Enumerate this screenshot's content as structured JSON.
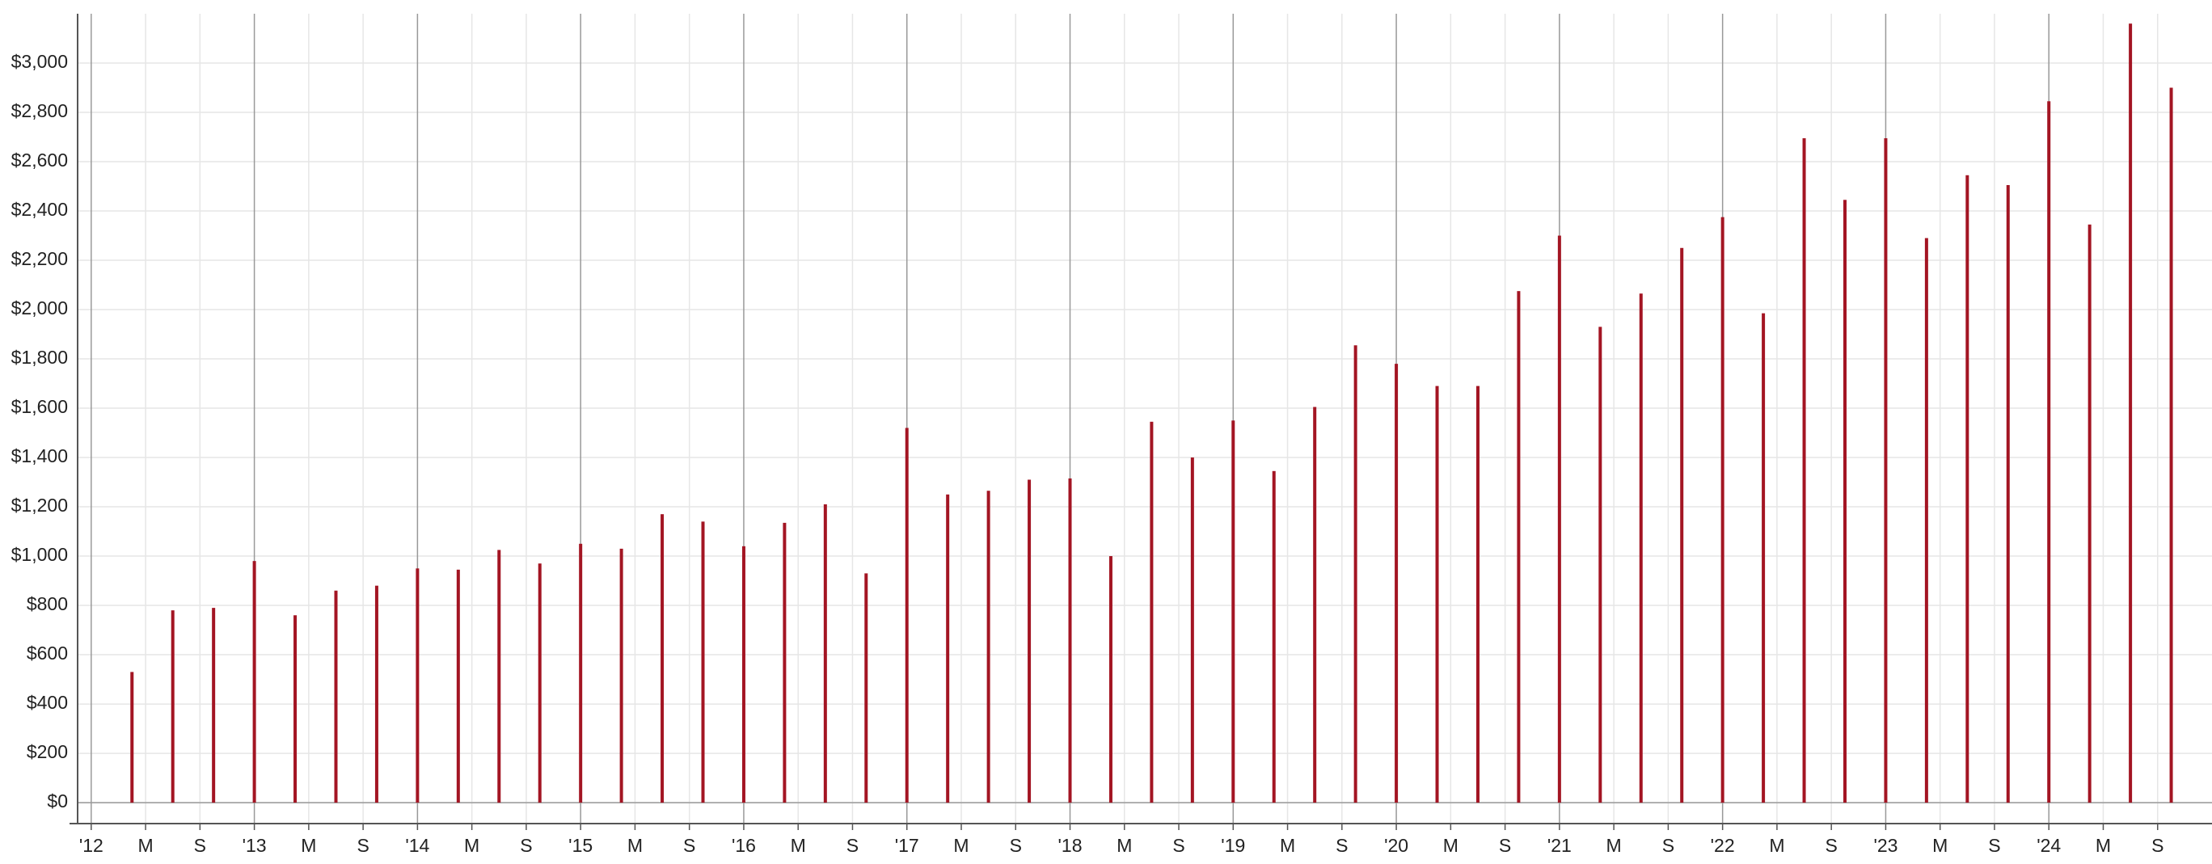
{
  "chart_data": {
    "type": "bar",
    "color": "#a31523",
    "grid": true,
    "x": [
      "2012-04",
      "2012-07",
      "2012-10",
      "2013-01",
      "2013-04",
      "2013-07",
      "2013-10",
      "2014-01",
      "2014-04",
      "2014-07",
      "2014-10",
      "2015-01",
      "2015-04",
      "2015-07",
      "2015-10",
      "2016-01",
      "2016-04",
      "2016-07",
      "2016-10",
      "2017-01",
      "2017-04",
      "2017-07",
      "2017-10",
      "2018-01",
      "2018-04",
      "2018-07",
      "2018-10",
      "2019-01",
      "2019-04",
      "2019-07",
      "2019-10",
      "2020-01",
      "2020-04",
      "2020-07",
      "2020-10",
      "2021-01",
      "2021-04",
      "2021-07",
      "2021-10",
      "2022-01",
      "2022-04",
      "2022-07",
      "2022-10",
      "2023-01",
      "2023-04",
      "2023-07",
      "2023-10",
      "2024-01",
      "2024-04",
      "2024-07",
      "2024-10"
    ],
    "values": [
      530,
      780,
      790,
      980,
      760,
      860,
      880,
      950,
      945,
      1025,
      970,
      1050,
      1030,
      1170,
      1140,
      1040,
      1135,
      1210,
      930,
      1520,
      1250,
      1265,
      1310,
      1315,
      1000,
      1545,
      1400,
      1550,
      1345,
      1605,
      1855,
      1780,
      1690,
      1690,
      2075,
      2300,
      1930,
      2065,
      2250,
      2375,
      1985,
      2695,
      2445,
      2695,
      2290,
      2545,
      2505,
      2845,
      2345,
      3160,
      2900
    ],
    "xlim": [
      "2011-12",
      "2025-01"
    ],
    "xticks": [
      {
        "value": "2012-01",
        "label": "'12"
      },
      {
        "value": "2012-05",
        "label": "M"
      },
      {
        "value": "2012-09",
        "label": "S"
      },
      {
        "value": "2013-01",
        "label": "'13"
      },
      {
        "value": "2013-05",
        "label": "M"
      },
      {
        "value": "2013-09",
        "label": "S"
      },
      {
        "value": "2014-01",
        "label": "'14"
      },
      {
        "value": "2014-05",
        "label": "M"
      },
      {
        "value": "2014-09",
        "label": "S"
      },
      {
        "value": "2015-01",
        "label": "'15"
      },
      {
        "value": "2015-05",
        "label": "M"
      },
      {
        "value": "2015-09",
        "label": "S"
      },
      {
        "value": "2016-01",
        "label": "'16"
      },
      {
        "value": "2016-05",
        "label": "M"
      },
      {
        "value": "2016-09",
        "label": "S"
      },
      {
        "value": "2017-01",
        "label": "'17"
      },
      {
        "value": "2017-05",
        "label": "M"
      },
      {
        "value": "2017-09",
        "label": "S"
      },
      {
        "value": "2018-01",
        "label": "'18"
      },
      {
        "value": "2018-05",
        "label": "M"
      },
      {
        "value": "2018-09",
        "label": "S"
      },
      {
        "value": "2019-01",
        "label": "'19"
      },
      {
        "value": "2019-05",
        "label": "M"
      },
      {
        "value": "2019-09",
        "label": "S"
      },
      {
        "value": "2020-01",
        "label": "'20"
      },
      {
        "value": "2020-05",
        "label": "M"
      },
      {
        "value": "2020-09",
        "label": "S"
      },
      {
        "value": "2021-01",
        "label": "'21"
      },
      {
        "value": "2021-05",
        "label": "M"
      },
      {
        "value": "2021-09",
        "label": "S"
      },
      {
        "value": "2022-01",
        "label": "'22"
      },
      {
        "value": "2022-05",
        "label": "M"
      },
      {
        "value": "2022-09",
        "label": "S"
      },
      {
        "value": "2023-01",
        "label": "'23"
      },
      {
        "value": "2023-05",
        "label": "M"
      },
      {
        "value": "2023-09",
        "label": "S"
      },
      {
        "value": "2024-01",
        "label": "'24"
      },
      {
        "value": "2024-05",
        "label": "M"
      },
      {
        "value": "2024-09",
        "label": "S"
      }
    ],
    "ylim": [
      -85,
      3200
    ],
    "yticks": [
      {
        "value": 0,
        "label": "$0"
      },
      {
        "value": 200,
        "label": "$200"
      },
      {
        "value": 400,
        "label": "$400"
      },
      {
        "value": 600,
        "label": "$600"
      },
      {
        "value": 800,
        "label": "$800"
      },
      {
        "value": 1000,
        "label": "$1,000"
      },
      {
        "value": 1200,
        "label": "$1,200"
      },
      {
        "value": 1400,
        "label": "$1,400"
      },
      {
        "value": 1600,
        "label": "$1,600"
      },
      {
        "value": 1800,
        "label": "$1,800"
      },
      {
        "value": 2000,
        "label": "$2,000"
      },
      {
        "value": 2200,
        "label": "$2,200"
      },
      {
        "value": 2400,
        "label": "$2,400"
      },
      {
        "value": 2600,
        "label": "$2,600"
      },
      {
        "value": 2800,
        "label": "$2,800"
      },
      {
        "value": 3000,
        "label": "$3,000"
      }
    ]
  }
}
